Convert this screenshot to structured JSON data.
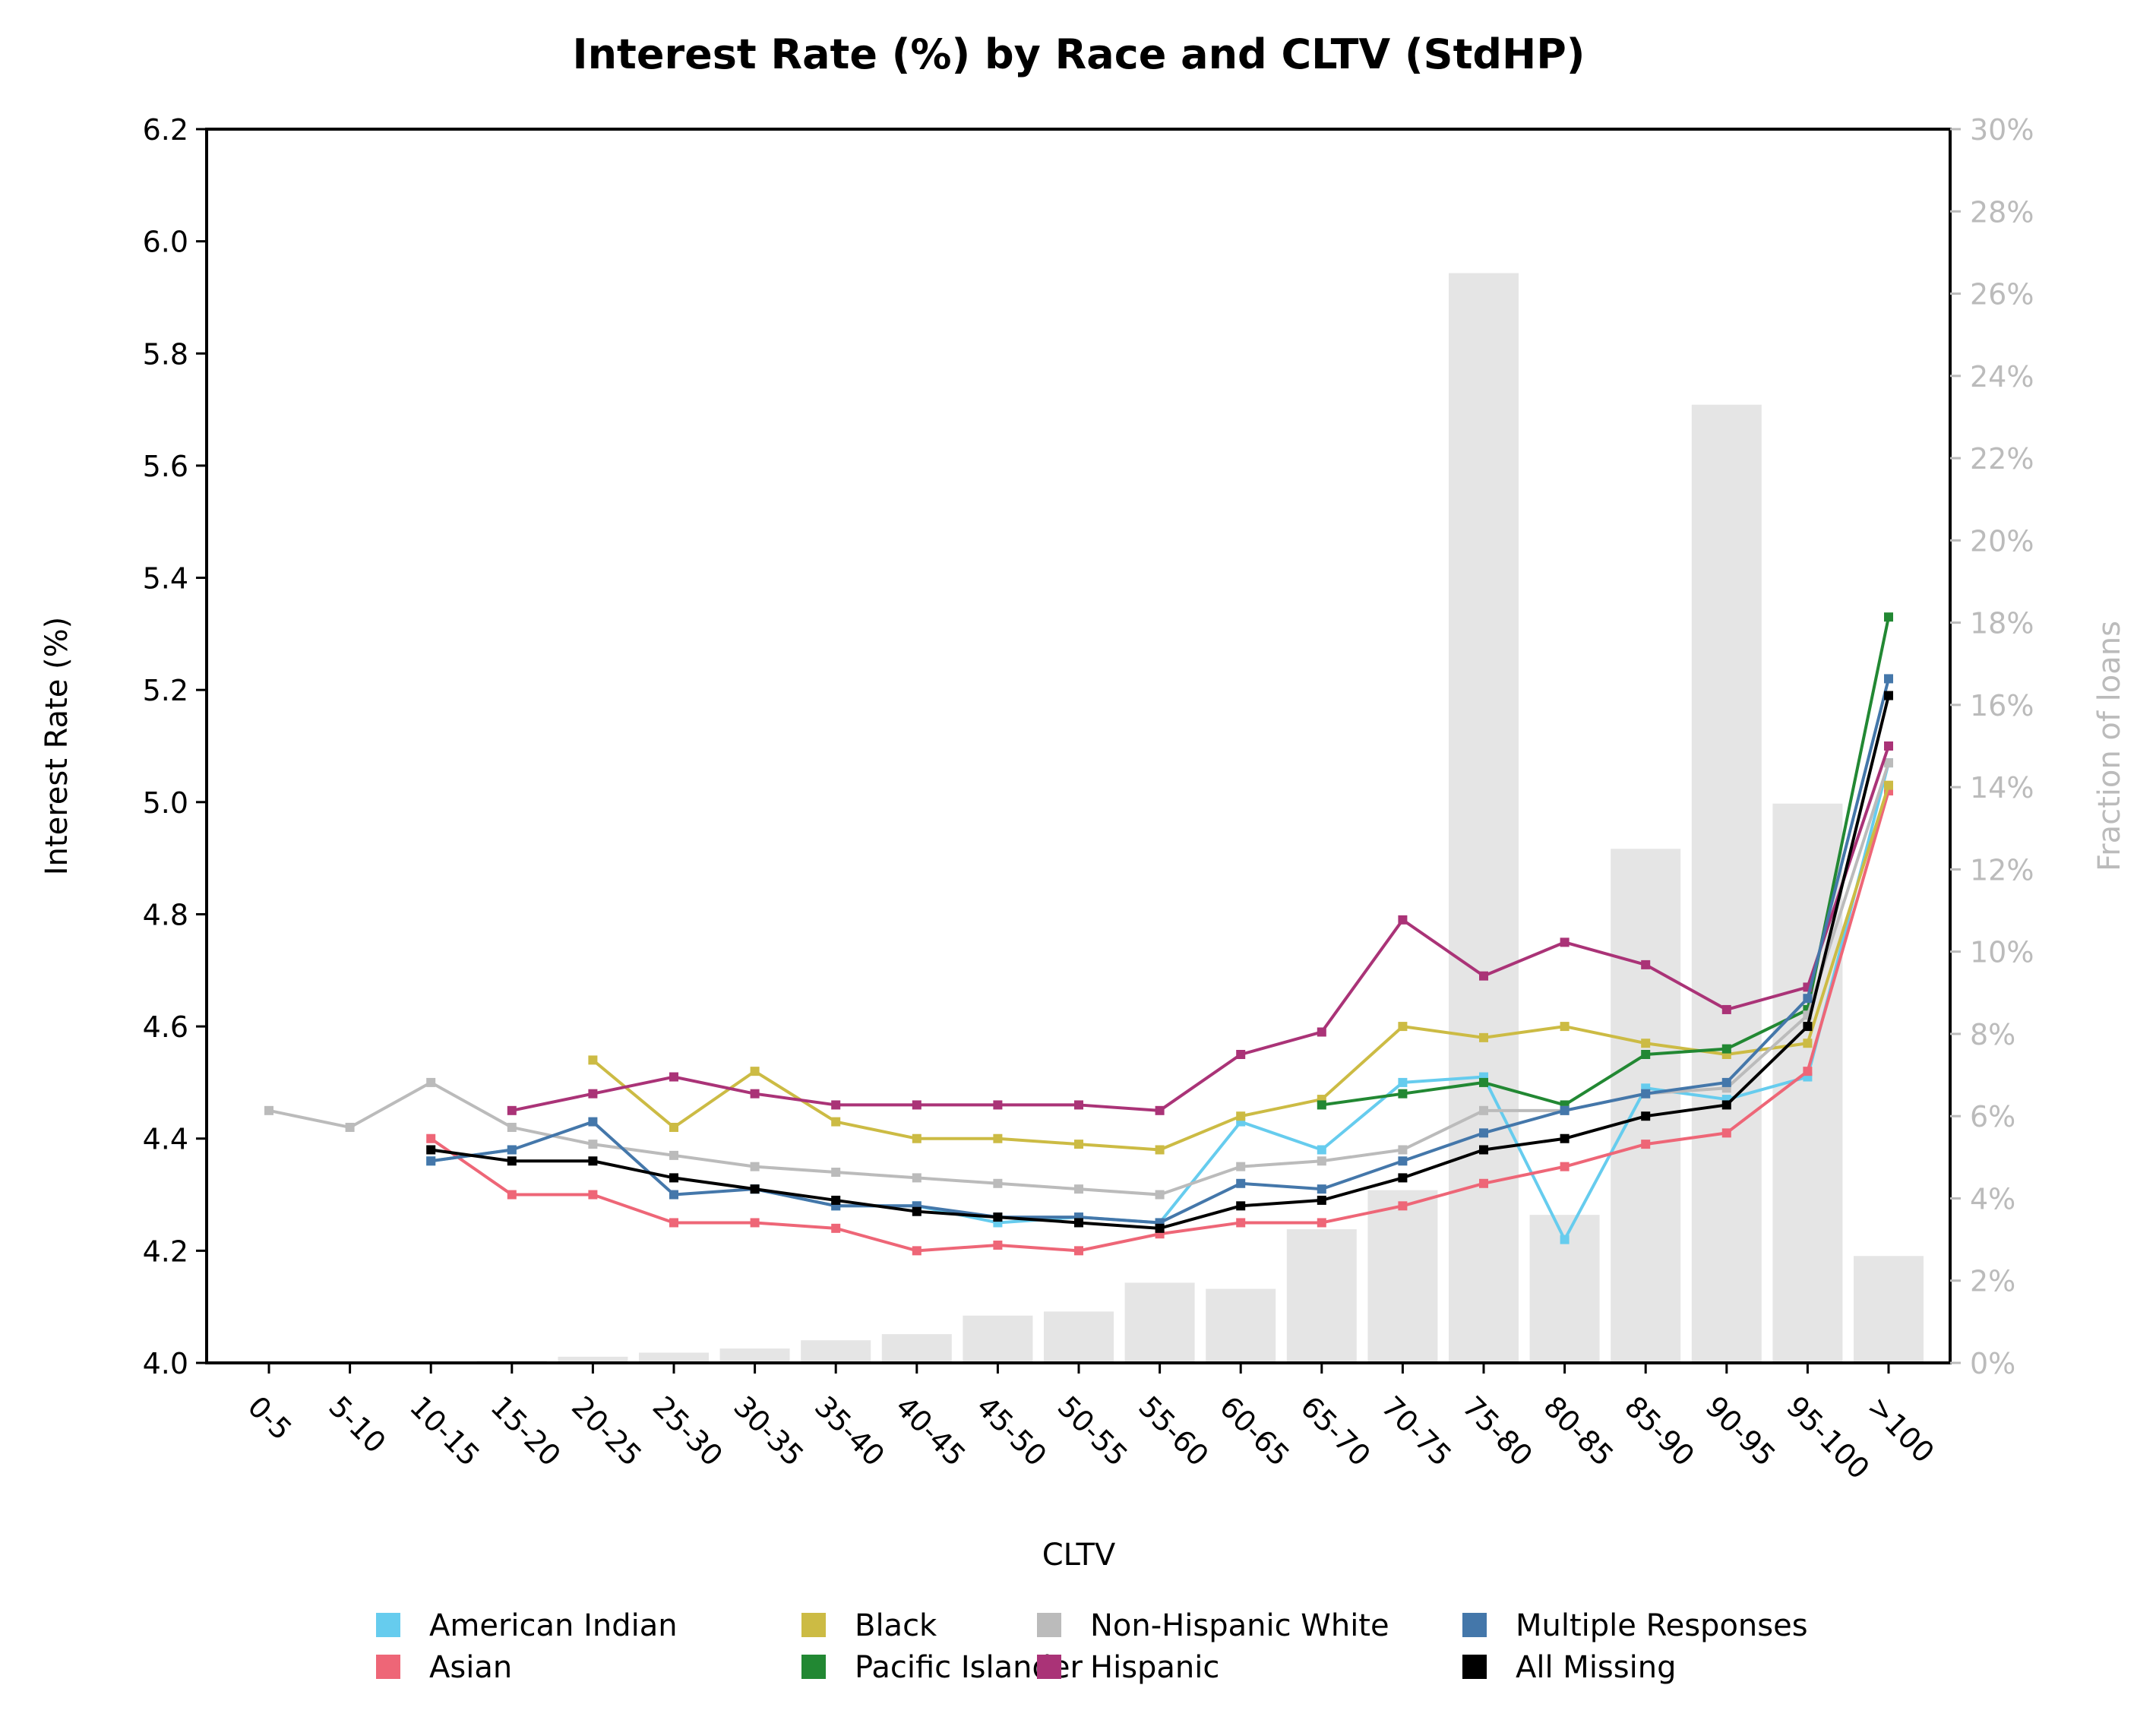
{
  "chart_data": {
    "type": "line",
    "title": "Interest Rate (%) by Race and CLTV (StdHP)",
    "xlabel": "CLTV",
    "ylabel": "Interest Rate (%)",
    "y2label": "Fraction of loans",
    "ylim": [
      4.0,
      6.2
    ],
    "yticks": [
      "4.0",
      "4.2",
      "4.4",
      "4.6",
      "4.8",
      "5.0",
      "5.2",
      "5.4",
      "5.6",
      "5.8",
      "6.0",
      "6.2"
    ],
    "y2lim": [
      0,
      30
    ],
    "y2ticks": [
      "0%",
      "2%",
      "4%",
      "6%",
      "8%",
      "10%",
      "12%",
      "14%",
      "16%",
      "18%",
      "20%",
      "22%",
      "24%",
      "26%",
      "28%",
      "30%"
    ],
    "categories": [
      "0-5",
      "5-10",
      "10-15",
      "15-20",
      "20-25",
      "25-30",
      "30-35",
      "35-40",
      "40-45",
      "45-50",
      "50-55",
      "55-60",
      "60-65",
      "65-70",
      "70-75",
      "75-80",
      "80-85",
      "85-90",
      "90-95",
      "95-100",
      ">100"
    ],
    "bars": {
      "name": "Fraction of loans",
      "values": [
        0,
        0,
        0,
        0.05,
        0.15,
        0.25,
        0.35,
        0.55,
        0.7,
        1.15,
        1.25,
        1.95,
        1.8,
        3.25,
        4.2,
        26.5,
        3.6,
        12.5,
        23.3,
        13.6,
        2.6
      ]
    },
    "legend_position": "bottom",
    "grid": false,
    "series": [
      {
        "name": "American Indian",
        "color": "#66ccee",
        "values": [
          null,
          null,
          4.36,
          4.38,
          null,
          null,
          4.31,
          4.28,
          4.28,
          4.25,
          4.26,
          4.25,
          4.43,
          4.38,
          4.5,
          4.51,
          4.22,
          4.49,
          4.47,
          4.51,
          5.07
        ]
      },
      {
        "name": "Asian",
        "color": "#ee6677",
        "values": [
          null,
          null,
          4.4,
          4.3,
          4.3,
          4.25,
          4.25,
          4.24,
          4.2,
          4.21,
          4.2,
          4.23,
          4.25,
          4.25,
          4.28,
          4.32,
          4.35,
          4.39,
          4.41,
          4.52,
          5.02
        ]
      },
      {
        "name": "Black",
        "color": "#ccbb44",
        "values": [
          null,
          null,
          null,
          null,
          4.54,
          4.42,
          4.52,
          4.43,
          4.4,
          4.4,
          4.39,
          4.38,
          4.44,
          4.47,
          4.6,
          4.58,
          4.6,
          4.57,
          4.55,
          4.57,
          5.03
        ]
      },
      {
        "name": "Pacific Islander",
        "color": "#228833",
        "values": [
          null,
          null,
          null,
          null,
          null,
          null,
          null,
          null,
          null,
          null,
          null,
          null,
          null,
          4.46,
          4.48,
          4.5,
          4.46,
          4.55,
          4.56,
          4.63,
          5.33
        ]
      },
      {
        "name": "Non-Hispanic White",
        "color": "#bbbbbb",
        "values": [
          4.45,
          4.42,
          4.5,
          4.42,
          4.39,
          4.37,
          4.35,
          4.34,
          4.33,
          4.32,
          4.31,
          4.3,
          4.35,
          4.36,
          4.38,
          4.45,
          4.45,
          4.48,
          4.49,
          4.62,
          5.07
        ]
      },
      {
        "name": "Hispanic",
        "color": "#aa3377",
        "values": [
          null,
          null,
          null,
          4.45,
          4.48,
          4.51,
          4.48,
          4.46,
          4.46,
          4.46,
          4.46,
          4.45,
          4.55,
          4.59,
          4.79,
          4.69,
          4.75,
          4.71,
          4.63,
          4.67,
          5.1
        ]
      },
      {
        "name": "Multiple Responses",
        "color": "#4477aa",
        "values": [
          null,
          null,
          4.36,
          4.38,
          4.43,
          4.3,
          4.31,
          4.28,
          4.28,
          4.26,
          4.26,
          4.25,
          4.32,
          4.31,
          4.36,
          4.41,
          4.45,
          4.48,
          4.5,
          4.65,
          5.22
        ]
      },
      {
        "name": "All Missing",
        "color": "#000000",
        "values": [
          null,
          null,
          4.38,
          4.36,
          4.36,
          4.33,
          4.31,
          4.29,
          4.27,
          4.26,
          4.25,
          4.24,
          4.28,
          4.29,
          4.33,
          4.38,
          4.4,
          4.44,
          4.46,
          4.6,
          5.19
        ]
      }
    ]
  }
}
